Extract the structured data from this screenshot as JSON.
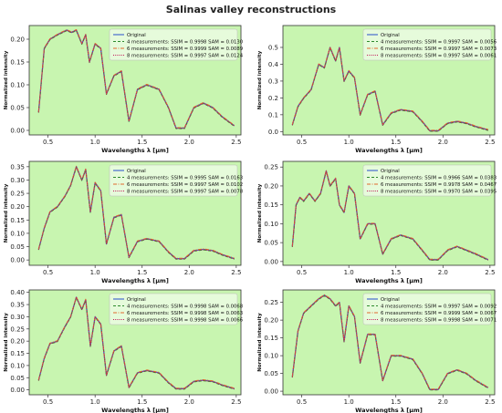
{
  "figure": {
    "title": "Salinas valley reconstructions"
  },
  "style": {
    "panel_bg": "#c8f5b0",
    "colors": {
      "original": "#3a5fcd",
      "m4": "#2e8b2e",
      "m6": "#e06a2c",
      "m8": "#c2185b"
    }
  },
  "chart_data": [
    {
      "type": "line",
      "xlabel": "Wavelengths λ [μm]",
      "ylabel": "Normalized intensity",
      "xlim": [
        0.3,
        2.55
      ],
      "ylim": [
        -0.01,
        0.23
      ],
      "xticks": [
        "0.5",
        "1.0",
        "1.5",
        "2.0",
        "2.5"
      ],
      "yticks": [
        "0.00",
        "0.05",
        "0.10",
        "0.15",
        "0.20"
      ],
      "legend_location": "upper right",
      "series": [
        {
          "name": "Original",
          "style": "solid"
        },
        {
          "name": "4 measurements: SSIM = 0.9998 SAM = 0.0130",
          "style": "dashed"
        },
        {
          "name": "6 measurements: SSIM = 0.9999 SAM = 0.0089",
          "style": "dashdot"
        },
        {
          "name": "8 measurements: SSIM = 0.9997 SAM = 0.0124",
          "style": "dotted"
        }
      ],
      "profile": [
        [
          0.4,
          0.04
        ],
        [
          0.46,
          0.18
        ],
        [
          0.52,
          0.2
        ],
        [
          0.6,
          0.21
        ],
        [
          0.7,
          0.22
        ],
        [
          0.75,
          0.215
        ],
        [
          0.8,
          0.22
        ],
        [
          0.86,
          0.19
        ],
        [
          0.9,
          0.21
        ],
        [
          0.94,
          0.15
        ],
        [
          1.0,
          0.19
        ],
        [
          1.06,
          0.18
        ],
        [
          1.12,
          0.08
        ],
        [
          1.2,
          0.12
        ],
        [
          1.28,
          0.13
        ],
        [
          1.36,
          0.02
        ],
        [
          1.45,
          0.09
        ],
        [
          1.55,
          0.1
        ],
        [
          1.68,
          0.09
        ],
        [
          1.78,
          0.05
        ],
        [
          1.86,
          0.005
        ],
        [
          1.95,
          0.005
        ],
        [
          2.05,
          0.05
        ],
        [
          2.15,
          0.06
        ],
        [
          2.25,
          0.05
        ],
        [
          2.35,
          0.03
        ],
        [
          2.48,
          0.01
        ]
      ]
    },
    {
      "type": "line",
      "xlabel": "Wavelengths λ [μm]",
      "ylabel": "Normalized intensity",
      "xlim": [
        0.3,
        2.55
      ],
      "ylim": [
        -0.02,
        0.63
      ],
      "xticks": [
        "0.5",
        "1.0",
        "1.5",
        "2.0",
        "2.5"
      ],
      "yticks": [
        "0.0",
        "0.1",
        "0.2",
        "0.3",
        "0.4",
        "0.5"
      ],
      "legend_location": "upper right",
      "series": [
        {
          "name": "Original",
          "style": "solid"
        },
        {
          "name": "4 measurements: SSIM = 0.9997 SAM = 0.0056",
          "style": "dashed"
        },
        {
          "name": "6 measurements: SSIM = 0.9997 SAM = 0.0073",
          "style": "dashdot"
        },
        {
          "name": "8 measurements: SSIM = 0.9997 SAM = 0.0061",
          "style": "dotted"
        }
      ],
      "profile": [
        [
          0.4,
          0.04
        ],
        [
          0.46,
          0.15
        ],
        [
          0.52,
          0.2
        ],
        [
          0.6,
          0.25
        ],
        [
          0.68,
          0.4
        ],
        [
          0.74,
          0.38
        ],
        [
          0.8,
          0.5
        ],
        [
          0.86,
          0.42
        ],
        [
          0.9,
          0.5
        ],
        [
          0.95,
          0.3
        ],
        [
          1.0,
          0.36
        ],
        [
          1.06,
          0.32
        ],
        [
          1.12,
          0.1
        ],
        [
          1.2,
          0.22
        ],
        [
          1.28,
          0.24
        ],
        [
          1.36,
          0.04
        ],
        [
          1.45,
          0.11
        ],
        [
          1.55,
          0.13
        ],
        [
          1.68,
          0.12
        ],
        [
          1.78,
          0.06
        ],
        [
          1.86,
          0.005
        ],
        [
          1.95,
          0.005
        ],
        [
          2.05,
          0.05
        ],
        [
          2.15,
          0.06
        ],
        [
          2.25,
          0.05
        ],
        [
          2.35,
          0.03
        ],
        [
          2.48,
          0.01
        ]
      ]
    },
    {
      "type": "line",
      "xlabel": "Wavelengths λ [μm]",
      "ylabel": "Normalized intensity",
      "xlim": [
        0.3,
        2.55
      ],
      "ylim": [
        -0.02,
        0.37
      ],
      "xticks": [
        "0.5",
        "1.0",
        "1.5",
        "2.0",
        "2.5"
      ],
      "yticks": [
        "0.00",
        "0.05",
        "0.10",
        "0.15",
        "0.20",
        "0.25",
        "0.30",
        "0.35"
      ],
      "legend_location": "upper right",
      "series": [
        {
          "name": "Original",
          "style": "solid"
        },
        {
          "name": "4 measurements: SSIM = 0.9995 SAM = 0.0163",
          "style": "dashed"
        },
        {
          "name": "6 measurements: SSIM = 0.9997 SAM = 0.0102",
          "style": "dashdot"
        },
        {
          "name": "8 measurements: SSIM = 0.9997 SAM = 0.0078",
          "style": "dotted"
        }
      ],
      "profile": [
        [
          0.4,
          0.04
        ],
        [
          0.46,
          0.12
        ],
        [
          0.52,
          0.18
        ],
        [
          0.6,
          0.2
        ],
        [
          0.68,
          0.24
        ],
        [
          0.74,
          0.28
        ],
        [
          0.8,
          0.35
        ],
        [
          0.86,
          0.3
        ],
        [
          0.9,
          0.34
        ],
        [
          0.95,
          0.18
        ],
        [
          1.0,
          0.29
        ],
        [
          1.06,
          0.26
        ],
        [
          1.12,
          0.06
        ],
        [
          1.2,
          0.16
        ],
        [
          1.28,
          0.17
        ],
        [
          1.36,
          0.01
        ],
        [
          1.45,
          0.07
        ],
        [
          1.55,
          0.08
        ],
        [
          1.68,
          0.07
        ],
        [
          1.78,
          0.03
        ],
        [
          1.86,
          0.005
        ],
        [
          1.95,
          0.005
        ],
        [
          2.05,
          0.035
        ],
        [
          2.15,
          0.04
        ],
        [
          2.25,
          0.035
        ],
        [
          2.35,
          0.02
        ],
        [
          2.48,
          0.005
        ]
      ]
    },
    {
      "type": "line",
      "xlabel": "Wavelengths λ [μm]",
      "ylabel": "Normalized intensity",
      "xlim": [
        0.3,
        2.55
      ],
      "ylim": [
        -0.01,
        0.265
      ],
      "xticks": [
        "0.5",
        "1.0",
        "1.5",
        "2.0",
        "2.5"
      ],
      "yticks": [
        "0.00",
        "0.05",
        "0.10",
        "0.15",
        "0.20",
        "0.25"
      ],
      "legend_location": "upper right",
      "series": [
        {
          "name": "Original",
          "style": "solid"
        },
        {
          "name": "4 measurements: SSIM = 0.9966 SAM = 0.0383",
          "style": "dashed"
        },
        {
          "name": "6 measurements: SSIM = 0.9978 SAM = 0.0467",
          "style": "dashdot"
        },
        {
          "name": "8 measurements: SSIM = 0.9970 SAM = 0.0395",
          "style": "dotted"
        }
      ],
      "profile": [
        [
          0.4,
          0.04
        ],
        [
          0.44,
          0.15
        ],
        [
          0.48,
          0.17
        ],
        [
          0.52,
          0.16
        ],
        [
          0.58,
          0.18
        ],
        [
          0.64,
          0.16
        ],
        [
          0.7,
          0.18
        ],
        [
          0.76,
          0.24
        ],
        [
          0.8,
          0.2
        ],
        [
          0.86,
          0.22
        ],
        [
          0.9,
          0.15
        ],
        [
          0.95,
          0.13
        ],
        [
          1.0,
          0.2
        ],
        [
          1.06,
          0.18
        ],
        [
          1.12,
          0.06
        ],
        [
          1.2,
          0.1
        ],
        [
          1.28,
          0.1
        ],
        [
          1.36,
          0.02
        ],
        [
          1.45,
          0.06
        ],
        [
          1.55,
          0.07
        ],
        [
          1.68,
          0.06
        ],
        [
          1.78,
          0.03
        ],
        [
          1.86,
          0.005
        ],
        [
          1.95,
          0.005
        ],
        [
          2.05,
          0.03
        ],
        [
          2.15,
          0.04
        ],
        [
          2.25,
          0.03
        ],
        [
          2.35,
          0.02
        ],
        [
          2.48,
          0.005
        ]
      ]
    },
    {
      "type": "line",
      "xlabel": "Wavelengths λ [μm]",
      "ylabel": "Normalized intensity",
      "xlim": [
        0.3,
        2.55
      ],
      "ylim": [
        -0.02,
        0.41
      ],
      "xticks": [
        "0.5",
        "1.0",
        "1.5",
        "2.0",
        "2.5"
      ],
      "yticks": [
        "0.00",
        "0.05",
        "0.10",
        "0.15",
        "0.20",
        "0.25",
        "0.30",
        "0.35",
        "0.40"
      ],
      "legend_location": "upper right",
      "series": [
        {
          "name": "Original",
          "style": "solid"
        },
        {
          "name": "4 measurements: SSIM = 0.9998 SAM = 0.0068",
          "style": "dashed"
        },
        {
          "name": "6 measurements: SSIM = 0.9998 SAM = 0.0063",
          "style": "dashdot"
        },
        {
          "name": "8 measurements: SSIM = 0.9998 SAM = 0.0066",
          "style": "dotted"
        }
      ],
      "profile": [
        [
          0.4,
          0.04
        ],
        [
          0.46,
          0.13
        ],
        [
          0.52,
          0.19
        ],
        [
          0.6,
          0.2
        ],
        [
          0.68,
          0.26
        ],
        [
          0.74,
          0.3
        ],
        [
          0.8,
          0.38
        ],
        [
          0.86,
          0.33
        ],
        [
          0.9,
          0.37
        ],
        [
          0.95,
          0.18
        ],
        [
          1.0,
          0.3
        ],
        [
          1.06,
          0.27
        ],
        [
          1.12,
          0.06
        ],
        [
          1.2,
          0.16
        ],
        [
          1.28,
          0.18
        ],
        [
          1.36,
          0.01
        ],
        [
          1.45,
          0.07
        ],
        [
          1.55,
          0.08
        ],
        [
          1.68,
          0.07
        ],
        [
          1.78,
          0.03
        ],
        [
          1.86,
          0.005
        ],
        [
          1.95,
          0.005
        ],
        [
          2.05,
          0.035
        ],
        [
          2.15,
          0.04
        ],
        [
          2.25,
          0.035
        ],
        [
          2.35,
          0.02
        ],
        [
          2.48,
          0.005
        ]
      ]
    },
    {
      "type": "line",
      "xlabel": "Wavelengths λ [μm]",
      "ylabel": "Normalized intensity",
      "xlim": [
        0.3,
        2.55
      ],
      "ylim": [
        -0.01,
        0.285
      ],
      "xticks": [
        "0.5",
        "1.0",
        "1.5",
        "2.0",
        "2.5"
      ],
      "yticks": [
        "0.00",
        "0.05",
        "0.10",
        "0.15",
        "0.20",
        "0.25"
      ],
      "legend_location": "upper right",
      "series": [
        {
          "name": "Original",
          "style": "solid"
        },
        {
          "name": "4 measurements: SSIM = 0.9997 SAM = 0.0092",
          "style": "dashed"
        },
        {
          "name": "6 measurements: SSIM = 0.9999 SAM = 0.0067",
          "style": "dashdot"
        },
        {
          "name": "8 measurements: SSIM = 0.9998 SAM = 0.0071",
          "style": "dotted"
        }
      ],
      "profile": [
        [
          0.4,
          0.04
        ],
        [
          0.46,
          0.17
        ],
        [
          0.52,
          0.22
        ],
        [
          0.6,
          0.24
        ],
        [
          0.68,
          0.26
        ],
        [
          0.74,
          0.27
        ],
        [
          0.8,
          0.26
        ],
        [
          0.86,
          0.24
        ],
        [
          0.9,
          0.25
        ],
        [
          0.95,
          0.14
        ],
        [
          1.0,
          0.24
        ],
        [
          1.06,
          0.21
        ],
        [
          1.12,
          0.08
        ],
        [
          1.2,
          0.16
        ],
        [
          1.28,
          0.16
        ],
        [
          1.36,
          0.03
        ],
        [
          1.45,
          0.1
        ],
        [
          1.55,
          0.1
        ],
        [
          1.68,
          0.09
        ],
        [
          1.78,
          0.05
        ],
        [
          1.86,
          0.005
        ],
        [
          1.95,
          0.005
        ],
        [
          2.05,
          0.05
        ],
        [
          2.15,
          0.06
        ],
        [
          2.25,
          0.05
        ],
        [
          2.35,
          0.03
        ],
        [
          2.48,
          0.01
        ]
      ]
    }
  ]
}
